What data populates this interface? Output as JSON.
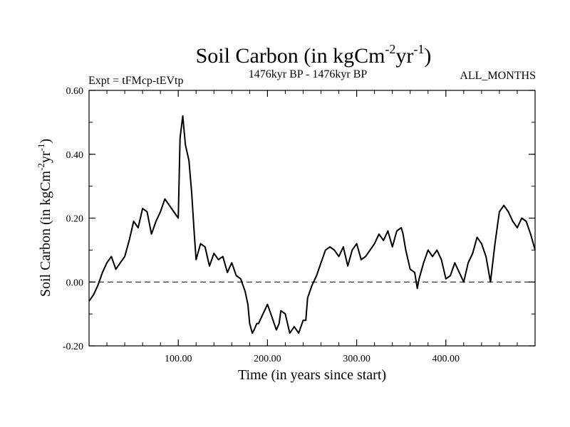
{
  "chart_data": {
    "type": "line",
    "title_main": "Soil Carbon (in kgCm",
    "title_sup1": "-2",
    "title_mid": "yr",
    "title_sup2": "-1",
    "title_end": ")",
    "subtitle_left": "Expt = tFMcp-tEVtp",
    "subtitle_center": "1476kyr BP - 1476kyr BP",
    "subtitle_right": "ALL_MONTHS",
    "xlabel": "Time (in years since start)",
    "ylabel_main": "Soil Carbon (in kgCm",
    "ylabel_sup1": "-2",
    "ylabel_mid": "yr",
    "ylabel_sup2": "-1",
    "ylabel_end": ")",
    "xlim": [
      0,
      500
    ],
    "ylim": [
      -0.2,
      0.6
    ],
    "x_ticks": [
      100,
      200,
      300,
      400
    ],
    "x_tick_labels": [
      "100.00",
      "200.00",
      "300.00",
      "400.00"
    ],
    "y_ticks": [
      -0.2,
      0.0,
      0.2,
      0.4,
      0.6
    ],
    "y_tick_labels": [
      "-0.20",
      "0.00",
      "0.20",
      "0.40",
      "0.60"
    ],
    "reference_line": 0.0,
    "series": [
      {
        "name": "Soil Carbon",
        "x": [
          0,
          5,
          10,
          15,
          20,
          25,
          30,
          35,
          40,
          45,
          50,
          55,
          60,
          65,
          70,
          75,
          80,
          85,
          90,
          95,
          100,
          102,
          105,
          108,
          112,
          115,
          118,
          120,
          125,
          130,
          135,
          140,
          145,
          150,
          155,
          160,
          165,
          170,
          175,
          178,
          180,
          183,
          185,
          188,
          190,
          195,
          200,
          205,
          210,
          213,
          215,
          220,
          225,
          230,
          235,
          240,
          243,
          245,
          250,
          255,
          260,
          265,
          270,
          275,
          280,
          285,
          290,
          295,
          300,
          305,
          310,
          315,
          320,
          325,
          330,
          335,
          340,
          345,
          350,
          352,
          355,
          360,
          365,
          368,
          370,
          375,
          380,
          385,
          390,
          395,
          400,
          405,
          410,
          415,
          420,
          425,
          430,
          435,
          440,
          445,
          450,
          455,
          460,
          465,
          470,
          475,
          480,
          485,
          490,
          495,
          500
        ],
        "values": [
          -0.06,
          -0.04,
          -0.01,
          0.03,
          0.06,
          0.08,
          0.04,
          0.06,
          0.08,
          0.13,
          0.19,
          0.17,
          0.23,
          0.22,
          0.15,
          0.19,
          0.22,
          0.26,
          0.24,
          0.22,
          0.2,
          0.45,
          0.52,
          0.43,
          0.38,
          0.28,
          0.15,
          0.07,
          0.12,
          0.11,
          0.05,
          0.09,
          0.07,
          0.08,
          0.03,
          0.06,
          0.02,
          0.01,
          -0.03,
          -0.07,
          -0.13,
          -0.16,
          -0.15,
          -0.13,
          -0.13,
          -0.1,
          -0.07,
          -0.11,
          -0.15,
          -0.13,
          -0.09,
          -0.1,
          -0.16,
          -0.14,
          -0.16,
          -0.12,
          -0.12,
          -0.05,
          -0.01,
          0.02,
          0.06,
          0.1,
          0.11,
          0.1,
          0.08,
          0.11,
          0.05,
          0.1,
          0.12,
          0.07,
          0.08,
          0.1,
          0.12,
          0.15,
          0.13,
          0.16,
          0.11,
          0.16,
          0.17,
          0.15,
          0.1,
          0.04,
          0.03,
          -0.02,
          0.01,
          0.06,
          0.1,
          0.08,
          0.1,
          0.07,
          0.01,
          0.02,
          0.06,
          0.03,
          0.0,
          0.06,
          0.09,
          0.14,
          0.12,
          0.08,
          0.0,
          0.12,
          0.22,
          0.24,
          0.22,
          0.19,
          0.17,
          0.2,
          0.19,
          0.15,
          0.1
        ]
      }
    ]
  }
}
